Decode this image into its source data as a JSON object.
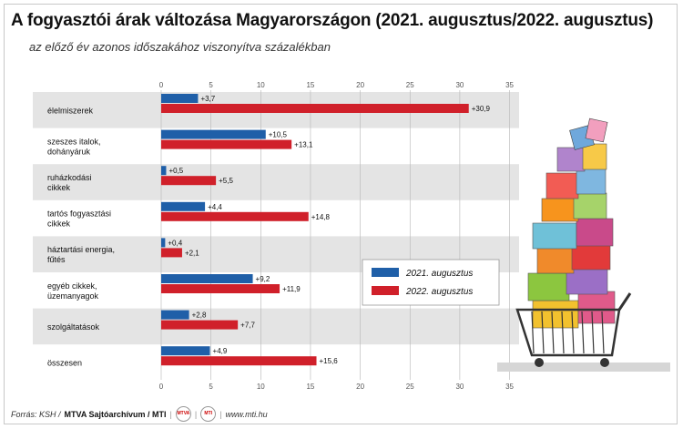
{
  "header": {
    "title": "A fogyasztói árak változása Magyarországon (2021. augusztus/2022. augusztus)",
    "subtitle": "az előző év azonos időszakához viszonyítva százalékban"
  },
  "footer": {
    "source": "Forrás: KSH /",
    "agency": "MTVA Sajtóarchívum / MTI",
    "website": "www.mti.hu"
  },
  "colors": {
    "series_2021": "#1f5fa8",
    "series_2022": "#d0202a",
    "band": "#e4e4e4"
  },
  "chart_data": {
    "type": "bar",
    "orientation": "horizontal",
    "categories": [
      "élelmiszerek",
      "szeszes italok, dohányáruk",
      "ruházkodási cikkek",
      "tartós fogyasztási cikkek",
      "háztartási energia, fűtés",
      "egyéb cikkek, üzemanyagok",
      "szolgáltatások",
      "összesen"
    ],
    "category_lines": [
      [
        "élelmiszerek"
      ],
      [
        "szeszes italok,",
        "dohányáruk"
      ],
      [
        "ruházkodási",
        "cikkek"
      ],
      [
        "tartós fogyasztási",
        "cikkek"
      ],
      [
        "háztartási energia,",
        "fűtés"
      ],
      [
        "egyéb cikkek,",
        "üzemanyagok"
      ],
      [
        "szolgáltatások"
      ],
      [
        "összesen"
      ]
    ],
    "series": [
      {
        "name": "2021. augusztus",
        "values": [
          3.7,
          10.5,
          0.5,
          4.4,
          0.4,
          9.2,
          2.8,
          4.9
        ],
        "labels": [
          "+3,7",
          "+10,5",
          "+0,5",
          "+4,4",
          "+0,4",
          "+9,2",
          "+2,8",
          "+4,9"
        ]
      },
      {
        "name": "2022. augusztus",
        "values": [
          30.9,
          13.1,
          5.5,
          14.8,
          2.1,
          11.9,
          7.7,
          15.6
        ],
        "labels": [
          "+30,9",
          "+13,1",
          "+5,5",
          "+14,8",
          "+2,1",
          "+11,9",
          "+7,7",
          "+15,6"
        ]
      }
    ],
    "xlim": [
      0,
      35
    ],
    "xticks": [
      0,
      5,
      10,
      15,
      20,
      25,
      30,
      35
    ],
    "grid": true,
    "legend": "center-right",
    "xlabel": "",
    "ylabel": ""
  }
}
